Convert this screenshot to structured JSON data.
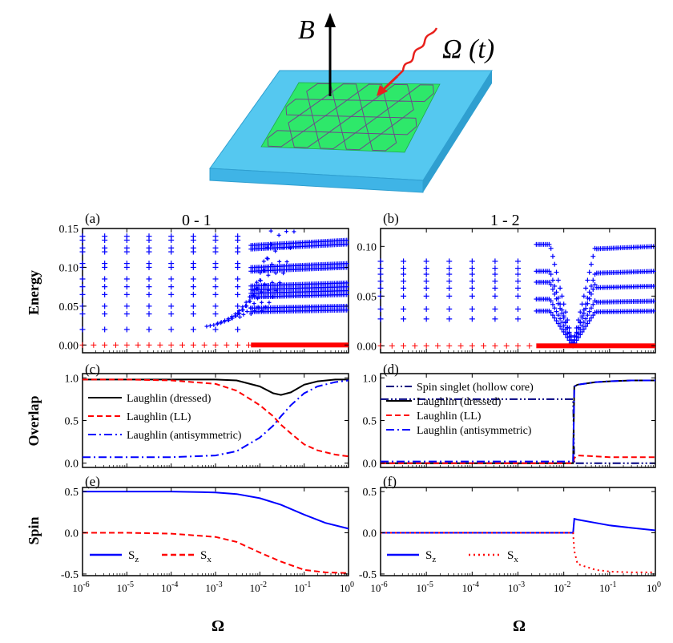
{
  "illustration": {
    "field_label": "B",
    "drive_label": "Ω (t)",
    "colors": {
      "substrate": "#55c8f0",
      "substrate_dark": "#2f9fd0",
      "sheet": "#2ee86a",
      "lattice": "#6b4a8a",
      "wave": "#e8201c",
      "arrow": "#000000"
    }
  },
  "panels": {
    "a": {
      "tag": "(a)",
      "title": "0 - 1"
    },
    "b": {
      "tag": "(b)",
      "title": "1 - 2"
    },
    "c": {
      "tag": "(c)"
    },
    "d": {
      "tag": "(d)"
    },
    "e": {
      "tag": "(e)"
    },
    "f": {
      "tag": "(f)"
    }
  },
  "row_labels": {
    "energy": "Energy",
    "overlap": "Overlap",
    "spin": "Spin"
  },
  "x_axis_label": "Ω",
  "chart_data": [
    {
      "id": "a",
      "type": "scatter",
      "title": "0 - 1",
      "xlabel": "Ω",
      "ylabel": "Energy",
      "x_scale": "log",
      "xlim": [
        1e-06,
        1
      ],
      "ylim": [
        -0.01,
        0.15
      ],
      "x_ticks": [
        "10-6",
        "10-5",
        "10-4",
        "10-3",
        "10-2",
        "10-1",
        "100"
      ],
      "y_ticks": [
        "0.00",
        "0.05",
        "0.10",
        "0.15"
      ],
      "series": [
        {
          "color": "#0000ff",
          "marker": "+",
          "levels_low_omega": [
            0.02,
            0.04,
            0.05,
            0.065,
            0.075,
            0.085,
            0.1,
            0.105,
            0.12,
            0.125,
            0.135,
            0.14
          ],
          "levels_high_omega": [
            0.045,
            0.05,
            0.065,
            0.07,
            0.075,
            0.08,
            0.1,
            0.105,
            0.13,
            0.135
          ]
        },
        {
          "color": "#ff0000",
          "marker": "+",
          "levels": [
            0.0
          ]
        }
      ]
    },
    {
      "id": "b",
      "type": "scatter",
      "title": "1 - 2",
      "xlabel": "Ω",
      "ylabel": "Energy",
      "x_scale": "log",
      "xlim": [
        1e-06,
        1
      ],
      "ylim": [
        -0.007,
        0.118
      ],
      "y_ticks": [
        "0.00",
        "0.05",
        "0.10"
      ],
      "series": [
        {
          "color": "#0000ff",
          "marker": "+",
          "levels_low_omega": [
            0.027,
            0.037,
            0.05,
            0.058,
            0.065,
            0.072,
            0.078,
            0.085
          ],
          "levels_high_omega": [
            0.035,
            0.045,
            0.06,
            0.075,
            0.1
          ]
        },
        {
          "color": "#ff0000",
          "marker": "+",
          "levels": [
            0.0
          ]
        }
      ]
    },
    {
      "id": "c",
      "type": "line",
      "ylabel": "Overlap",
      "x_scale": "log",
      "xlim": [
        1e-06,
        1
      ],
      "ylim": [
        -0.05,
        1.05
      ],
      "y_ticks": [
        "0.0",
        "0.5",
        "1.0"
      ],
      "x": [
        1e-06,
        1e-05,
        0.0001,
        0.001,
        0.003,
        0.01,
        0.02,
        0.03,
        0.05,
        0.1,
        0.2,
        0.5,
        1
      ],
      "series": [
        {
          "name": "Laughlin (dressed)",
          "color": "#000000",
          "style": "solid",
          "values": [
            0.98,
            0.98,
            0.98,
            0.98,
            0.97,
            0.9,
            0.82,
            0.8,
            0.83,
            0.92,
            0.96,
            0.98,
            0.98
          ]
        },
        {
          "name": "Laughlin (LL)",
          "color": "#ff0000",
          "style": "dashed",
          "values": [
            0.98,
            0.98,
            0.97,
            0.93,
            0.85,
            0.68,
            0.55,
            0.45,
            0.35,
            0.22,
            0.15,
            0.1,
            0.08
          ]
        },
        {
          "name": "Laughlin (antisymmetric)",
          "color": "#0000ff",
          "style": "dashdot",
          "values": [
            0.07,
            0.07,
            0.07,
            0.09,
            0.14,
            0.3,
            0.44,
            0.55,
            0.68,
            0.82,
            0.9,
            0.95,
            0.97
          ]
        }
      ]
    },
    {
      "id": "d",
      "type": "line",
      "x_scale": "log",
      "xlim": [
        1e-06,
        1
      ],
      "ylim": [
        -0.05,
        1.05
      ],
      "y_ticks": [
        "0.0",
        "0.5",
        "1.0"
      ],
      "x": [
        1e-06,
        0.0001,
        0.001,
        0.01,
        0.016,
        0.017,
        0.02,
        0.05,
        0.1,
        0.3,
        1
      ],
      "series": [
        {
          "name": "Spin singlet (hollow core)",
          "color": "#000080",
          "style": "dashdotdot",
          "values": [
            0.75,
            0.75,
            0.75,
            0.75,
            0.75,
            0.0,
            0.0,
            0.0,
            0.0,
            0.0,
            0.0
          ]
        },
        {
          "name": "Laughlin (dressed)",
          "color": "#000000",
          "style": "solid",
          "values": [
            0.0,
            0.0,
            0.0,
            0.0,
            0.0,
            0.9,
            0.92,
            0.95,
            0.96,
            0.97,
            0.97
          ]
        },
        {
          "name": "Laughlin (LL)",
          "color": "#ff0000",
          "style": "dashed",
          "values": [
            0.0,
            0.0,
            0.0,
            0.0,
            0.0,
            0.06,
            0.09,
            0.08,
            0.07,
            0.07,
            0.07
          ]
        },
        {
          "name": "Laughlin (antisymmetric)",
          "color": "#0000ff",
          "style": "dashdot",
          "values": [
            0.02,
            0.02,
            0.02,
            0.02,
            0.02,
            0.9,
            0.92,
            0.95,
            0.96,
            0.97,
            0.97
          ]
        }
      ]
    },
    {
      "id": "e",
      "type": "line",
      "ylabel": "Spin",
      "xlabel": "Ω",
      "x_scale": "log",
      "xlim": [
        1e-06,
        1
      ],
      "ylim": [
        -0.52,
        0.55
      ],
      "y_ticks": [
        "-0.5",
        "0.0",
        "0.5"
      ],
      "x_ticks": [
        "10-6",
        "10-5",
        "10-4",
        "10-3",
        "10-2",
        "10-1",
        "100"
      ],
      "x": [
        1e-06,
        1e-05,
        0.0001,
        0.001,
        0.003,
        0.01,
        0.03,
        0.1,
        0.3,
        1
      ],
      "series": [
        {
          "name": "Sz",
          "color": "#0000ff",
          "style": "solid",
          "values": [
            0.5,
            0.5,
            0.5,
            0.49,
            0.47,
            0.42,
            0.34,
            0.22,
            0.12,
            0.05
          ]
        },
        {
          "name": "Sx",
          "color": "#ff0000",
          "style": "dashed",
          "values": [
            0.0,
            0.0,
            -0.01,
            -0.05,
            -0.11,
            -0.24,
            -0.35,
            -0.45,
            -0.48,
            -0.49
          ]
        }
      ]
    },
    {
      "id": "f",
      "type": "line",
      "xlabel": "Ω",
      "x_scale": "log",
      "xlim": [
        1e-06,
        1
      ],
      "ylim": [
        -0.52,
        0.55
      ],
      "y_ticks": [
        "-0.5",
        "0.0",
        "0.5"
      ],
      "x_ticks": [
        "10-6",
        "10-5",
        "10-4",
        "10-3",
        "10-2",
        "10-1",
        "100"
      ],
      "x": [
        1e-06,
        0.0001,
        0.01,
        0.016,
        0.017,
        0.02,
        0.05,
        0.1,
        0.3,
        1
      ],
      "series": [
        {
          "name": "Sz",
          "color": "#0000ff",
          "style": "solid",
          "values": [
            0.0,
            0.0,
            0.0,
            0.0,
            0.17,
            0.16,
            0.12,
            0.09,
            0.06,
            0.03
          ]
        },
        {
          "name": "Sx",
          "color": "#ff0000",
          "style": "dotted",
          "values": [
            0.0,
            0.0,
            0.0,
            0.0,
            -0.22,
            -0.38,
            -0.45,
            -0.47,
            -0.48,
            -0.48
          ]
        }
      ]
    }
  ]
}
